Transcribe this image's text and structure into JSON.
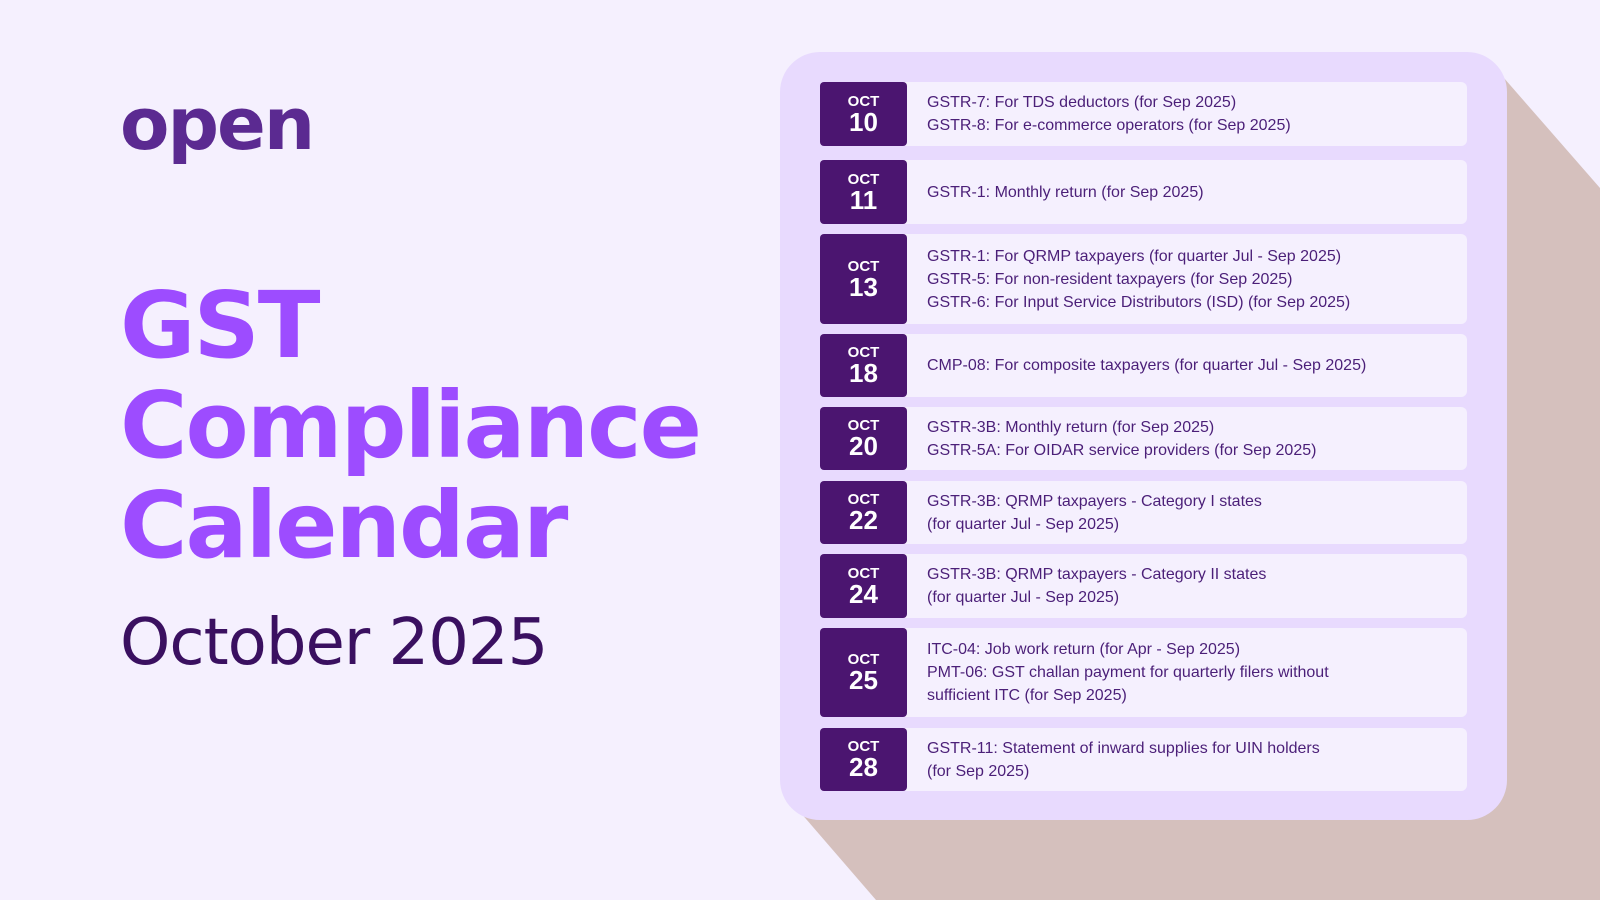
{
  "logo": "open",
  "title": [
    "GST",
    "Compliance",
    "Calendar"
  ],
  "subtitle": "October 2025",
  "colors": {
    "background": "#f5f0fe",
    "title": "#9d4cff",
    "date_box": "#4b1570",
    "card": "#e8dafe",
    "shadow": "#d5c0bd"
  },
  "entries": [
    {
      "month": "OCT",
      "day": "10",
      "lines": [
        "GSTR-7: For TDS deductors (for Sep 2025)",
        "GSTR-8: For e-commerce operators (for Sep 2025)"
      ]
    },
    {
      "month": "OCT",
      "day": "11",
      "lines": [
        "GSTR-1: Monthly return (for Sep 2025)"
      ]
    },
    {
      "month": "OCT",
      "day": "13",
      "lines": [
        "GSTR-1: For QRMP taxpayers (for quarter Jul - Sep 2025)",
        "GSTR-5: For non-resident taxpayers (for Sep 2025)",
        "GSTR-6: For Input Service Distributors (ISD) (for Sep 2025)"
      ]
    },
    {
      "month": "OCT",
      "day": "18",
      "lines": [
        "CMP-08: For composite taxpayers (for quarter Jul - Sep 2025)"
      ]
    },
    {
      "month": "OCT",
      "day": "20",
      "lines": [
        "GSTR-3B: Monthly return (for Sep 2025)",
        "GSTR-5A: For OIDAR service providers (for Sep 2025)"
      ]
    },
    {
      "month": "OCT",
      "day": "22",
      "lines": [
        "GSTR-3B: QRMP taxpayers - Category I states",
        "(for quarter Jul - Sep 2025)"
      ]
    },
    {
      "month": "OCT",
      "day": "24",
      "lines": [
        "GSTR-3B: QRMP taxpayers - Category II states",
        "(for quarter Jul - Sep 2025)"
      ]
    },
    {
      "month": "OCT",
      "day": "25",
      "lines": [
        "ITC-04: Job work return (for Apr - Sep 2025)",
        "PMT-06: GST challan payment for quarterly filers without",
        "sufficient ITC (for Sep 2025)"
      ]
    },
    {
      "month": "OCT",
      "day": "28",
      "lines": [
        "GSTR-11: Statement of inward supplies for UIN holders",
        "(for Sep 2025)"
      ]
    }
  ]
}
